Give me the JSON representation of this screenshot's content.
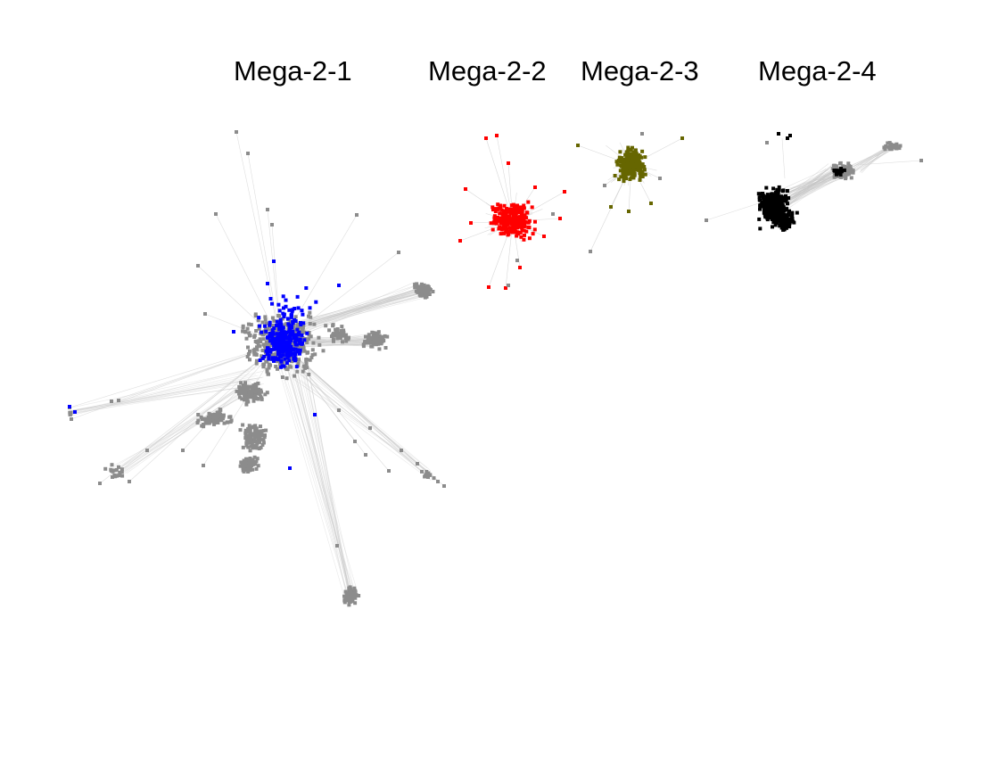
{
  "networks": [
    {
      "label": "Mega-2-1",
      "highlight_color": "#0000ff"
    },
    {
      "label": "Mega-2-2",
      "highlight_color": "#ff0000"
    },
    {
      "label": "Mega-2-3",
      "highlight_color": "#666600"
    },
    {
      "label": "Mega-2-4",
      "highlight_color": "#000000"
    }
  ],
  "colors": {
    "background_node": "#8c8c8c",
    "edge": "#c8c8c8"
  }
}
